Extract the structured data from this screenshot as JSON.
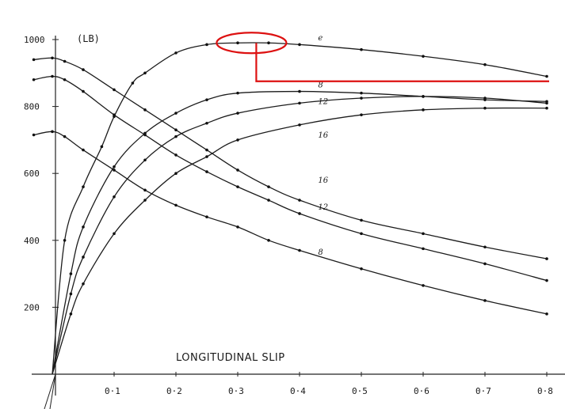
{
  "chart_data": {
    "type": "line",
    "xlabel": "LONGITUDINAL SLIP",
    "ylabel": "(LB)",
    "xlim": [
      0,
      0.8
    ],
    "ylim": [
      0,
      1000
    ],
    "x_ticks": [
      "0·1",
      "0·2",
      "0·3",
      "0·4",
      "0·5",
      "0·6",
      "0·7",
      "0·8"
    ],
    "y_ticks": [
      "200",
      "400",
      "600",
      "800",
      "1000"
    ],
    "y_tick_values": [
      200,
      400,
      600,
      800,
      1000
    ],
    "x_tick_values": [
      0.1,
      0.2,
      0.3,
      0.4,
      0.5,
      0.6,
      0.7,
      0.8
    ],
    "series": [
      {
        "name": "e",
        "x": [
          0,
          0.02,
          0.05,
          0.08,
          0.1,
          0.13,
          0.15,
          0.2,
          0.25,
          0.3,
          0.35,
          0.4,
          0.5,
          0.6,
          0.7,
          0.8
        ],
        "values": [
          0,
          400,
          560,
          680,
          770,
          870,
          900,
          960,
          985,
          990,
          990,
          985,
          970,
          950,
          925,
          890
        ]
      },
      {
        "name": "8",
        "x": [
          0,
          0.03,
          0.05,
          0.1,
          0.15,
          0.2,
          0.25,
          0.3,
          0.4,
          0.5,
          0.6,
          0.7,
          0.8
        ],
        "values": [
          0,
          300,
          440,
          620,
          720,
          780,
          820,
          840,
          845,
          840,
          830,
          820,
          815
        ]
      },
      {
        "name": "12",
        "x": [
          0,
          0.03,
          0.05,
          0.1,
          0.15,
          0.2,
          0.25,
          0.3,
          0.4,
          0.5,
          0.6,
          0.7,
          0.8
        ],
        "values": [
          0,
          240,
          350,
          530,
          640,
          710,
          750,
          780,
          810,
          825,
          830,
          825,
          810
        ]
      },
      {
        "name": "16",
        "x": [
          0,
          0.03,
          0.05,
          0.1,
          0.15,
          0.2,
          0.25,
          0.3,
          0.4,
          0.5,
          0.6,
          0.7,
          0.8
        ],
        "values": [
          0,
          180,
          270,
          420,
          520,
          600,
          650,
          700,
          745,
          775,
          790,
          795,
          795
        ]
      },
      {
        "name": "16",
        "x": [
          -0.03,
          0,
          0.02,
          0.05,
          0.1,
          0.15,
          0.2,
          0.25,
          0.3,
          0.35,
          0.4,
          0.5,
          0.6,
          0.7,
          0.8
        ],
        "values": [
          940,
          945,
          935,
          910,
          850,
          790,
          730,
          670,
          610,
          560,
          520,
          460,
          420,
          380,
          345
        ]
      },
      {
        "name": "12",
        "x": [
          -0.03,
          0,
          0.02,
          0.05,
          0.1,
          0.15,
          0.2,
          0.25,
          0.3,
          0.35,
          0.4,
          0.5,
          0.6,
          0.7,
          0.8
        ],
        "values": [
          880,
          890,
          880,
          845,
          775,
          715,
          655,
          605,
          560,
          520,
          480,
          420,
          375,
          330,
          280
        ]
      },
      {
        "name": "8",
        "x": [
          -0.03,
          0,
          0.02,
          0.05,
          0.1,
          0.15,
          0.2,
          0.25,
          0.3,
          0.35,
          0.4,
          0.5,
          0.6,
          0.7,
          0.8
        ],
        "values": [
          715,
          725,
          710,
          670,
          610,
          550,
          505,
          470,
          440,
          400,
          370,
          315,
          265,
          220,
          180
        ]
      }
    ],
    "annotation": {
      "color": "#dd1111",
      "ellipse_at": {
        "x": 0.33,
        "y": 990
      },
      "line_to": {
        "x": 0.8,
        "y": 880
      }
    },
    "grid": false,
    "legend": "none",
    "label_positions": [
      {
        "x": 0.43,
        "y": 990
      },
      {
        "x": 0.43,
        "y": 850
      },
      {
        "x": 0.43,
        "y": 800
      },
      {
        "x": 0.43,
        "y": 700
      },
      {
        "x": 0.43,
        "y": 565
      },
      {
        "x": 0.43,
        "y": 485
      },
      {
        "x": 0.43,
        "y": 350
      }
    ]
  }
}
